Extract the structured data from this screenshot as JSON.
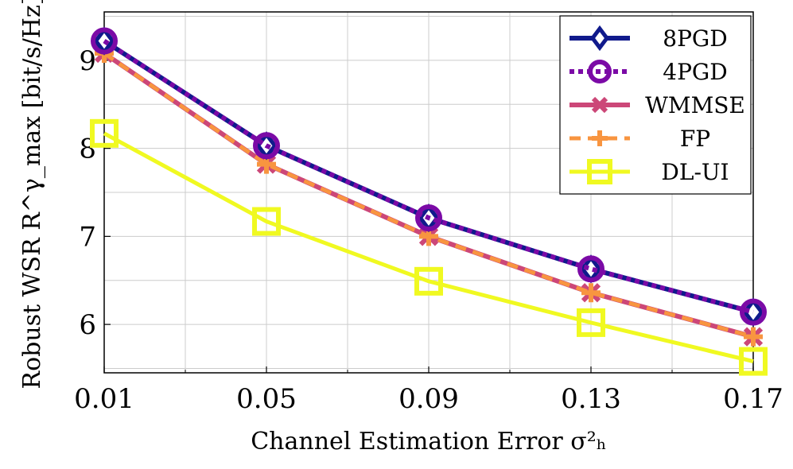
{
  "chart_data": {
    "type": "line",
    "x": [
      0.01,
      0.05,
      0.09,
      0.13,
      0.17
    ],
    "xticks": [
      "0.01",
      "0.05",
      "0.09",
      "0.13",
      "0.17"
    ],
    "yticks": [
      "6",
      "7",
      "8",
      "9"
    ],
    "xlabel": "Channel Estimation Error σ²ₕ",
    "ylabel": "Robust WSR R^γ_max [bit/s/Hz]",
    "xlim": [
      0.01,
      0.17
    ],
    "ylim": [
      5.45,
      9.55
    ],
    "grid": true,
    "legend_position": "top-right",
    "series": [
      {
        "name": "8PGD",
        "values": [
          9.22,
          8.03,
          7.21,
          6.63,
          6.14
        ],
        "color": "#101a8c",
        "marker": "diamond",
        "dash": "solid"
      },
      {
        "name": "4PGD",
        "values": [
          9.22,
          8.03,
          7.21,
          6.63,
          6.14
        ],
        "color": "#7b0aa6",
        "marker": "circle",
        "dash": "dotted"
      },
      {
        "name": "WMMSE",
        "values": [
          9.08,
          7.82,
          7.0,
          6.36,
          5.86
        ],
        "color": "#cc4778",
        "marker": "x",
        "dash": "solid"
      },
      {
        "name": "FP",
        "values": [
          9.08,
          7.82,
          7.0,
          6.36,
          5.86
        ],
        "color": "#f89540",
        "marker": "plus",
        "dash": "dashed"
      },
      {
        "name": "DL-UI",
        "values": [
          8.17,
          7.17,
          6.49,
          6.02,
          5.58
        ],
        "color": "#f0f921",
        "marker": "square",
        "dash": "solid"
      }
    ]
  }
}
